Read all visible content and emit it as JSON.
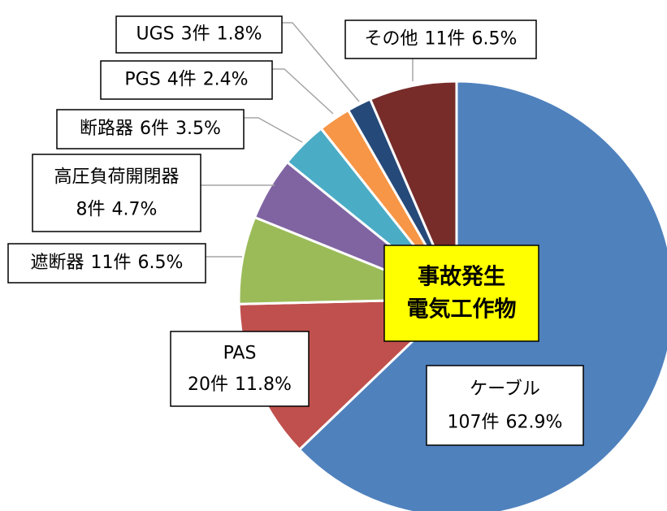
{
  "chart_data": {
    "type": "pie",
    "categories": [
      "ケーブル",
      "PAS",
      "遮断器",
      "高圧負荷開閉器",
      "断路器",
      "PGS",
      "UGS",
      "その他"
    ],
    "count_labels": [
      "107件",
      "20件",
      "11件",
      "8件",
      "6件",
      "4件",
      "3件",
      "11件"
    ],
    "values": [
      62.9,
      11.8,
      6.5,
      4.7,
      3.5,
      2.4,
      1.8,
      6.5
    ],
    "value_labels": [
      "62.9%",
      "11.8%",
      "6.5%",
      "4.7%",
      "3.5%",
      "2.4%",
      "1.8%",
      "6.5%"
    ],
    "colors": [
      "#4f81bd",
      "#c0504d",
      "#9bbb59",
      "#8064a2",
      "#4bacc6",
      "#f79646",
      "#254a7a",
      "#772c2a"
    ],
    "center_label": [
      "事故発生",
      "電気工作物"
    ]
  }
}
